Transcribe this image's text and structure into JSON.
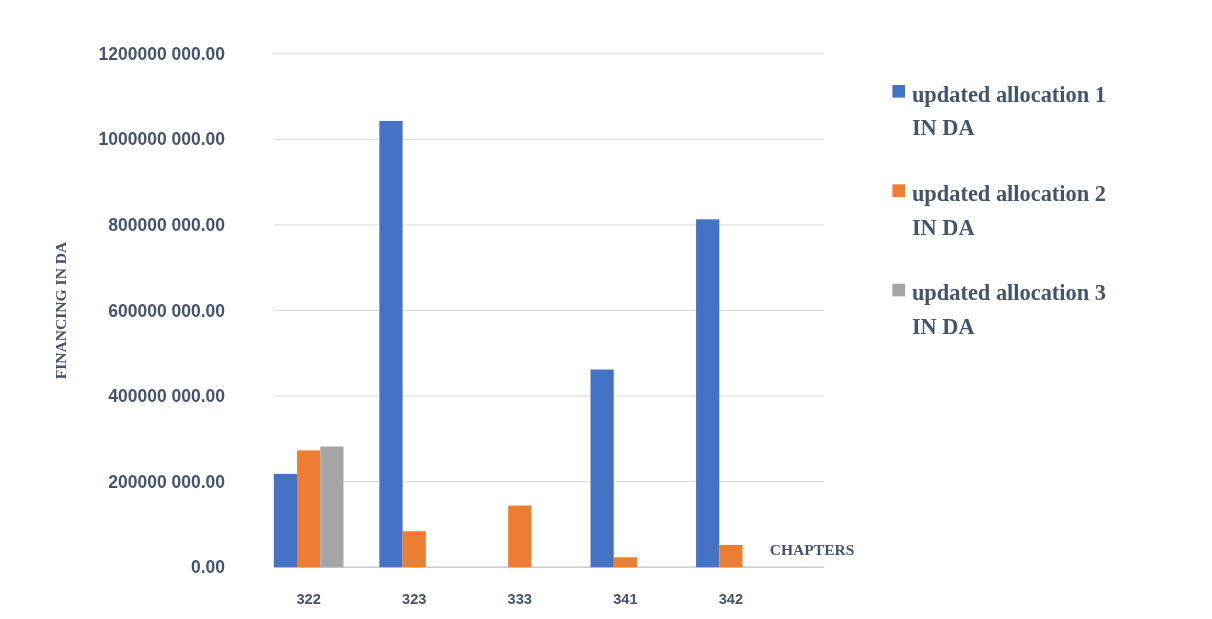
{
  "chart_data": {
    "type": "bar",
    "ylabel": "FINANCING IN DA",
    "xlabel": "CHAPTERS",
    "categories": [
      "322",
      "323",
      "333",
      "341",
      "342"
    ],
    "series": [
      {
        "name": "updated allocation 1 IN DA",
        "color": "#4472c4",
        "values": [
          218000000,
          1043000000,
          0,
          462000000,
          813000000
        ]
      },
      {
        "name": "updated allocation 2 IN DA",
        "color": "#ed7d31",
        "values": [
          273000000,
          84000000,
          144000000,
          23000000,
          52000000
        ]
      },
      {
        "name": "updated allocation 3 IN DA",
        "color": "#a5a5a5",
        "values": [
          282000000,
          null,
          null,
          null,
          null
        ]
      }
    ],
    "ylim": [
      0,
      1200000000
    ],
    "yticks": [
      {
        "value": 0,
        "label": "0.00"
      },
      {
        "value": 200000000,
        "label": "200000 000.00"
      },
      {
        "value": 400000000,
        "label": "400000 000.00"
      },
      {
        "value": 600000000,
        "label": "600000 000.00"
      },
      {
        "value": 800000000,
        "label": "800000 000.00"
      },
      {
        "value": 1000000000,
        "label": "1000000 000.00"
      },
      {
        "value": 1200000000,
        "label": "1200000 000.00"
      }
    ],
    "grid": "y",
    "legend": "right"
  }
}
